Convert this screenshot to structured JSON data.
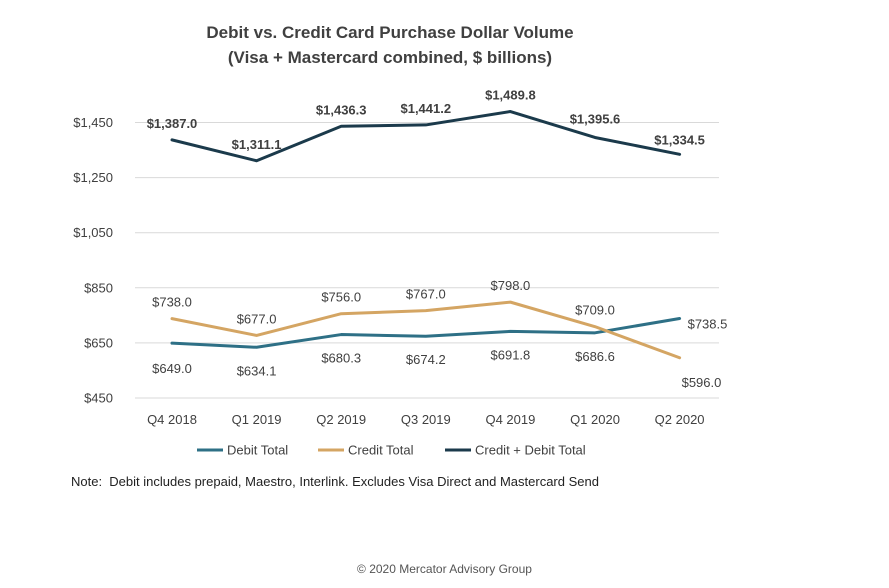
{
  "chart_data": {
    "type": "line",
    "title": "Debit vs. Credit Card Purchase Dollar Volume",
    "subtitle": "(Visa + Mastercard combined,  $ billions)",
    "categories": [
      "Q4 2018",
      "Q1 2019",
      "Q2 2019",
      "Q3 2019",
      "Q4 2019",
      "Q1 2020",
      "Q2 2020"
    ],
    "y_ticks": [
      "$450",
      "$650",
      "$850",
      "$1,050",
      "$1,250",
      "$1,450"
    ],
    "ylim": [
      450,
      1650
    ],
    "grid": true,
    "legend_position": "bottom",
    "series": [
      {
        "name": "Debit Total",
        "color": "#2e7086",
        "values": [
          649.0,
          634.1,
          680.3,
          674.2,
          691.8,
          686.6,
          738.5
        ],
        "labels": [
          "$649.0",
          "$634.1",
          "$680.3",
          "$674.2",
          "$691.8",
          "$686.6",
          "$738.5"
        ],
        "bold": false
      },
      {
        "name": "Credit Total",
        "color": "#d4a563",
        "values": [
          738.0,
          677.0,
          756.0,
          767.0,
          798.0,
          709.0,
          596.0
        ],
        "labels": [
          "$738.0",
          "$677.0",
          "$756.0",
          "$767.0",
          "$798.0",
          "$709.0",
          "$596.0"
        ],
        "bold": false
      },
      {
        "name": "Credit + Debit Total",
        "color": "#1b3a4b",
        "values": [
          1387.0,
          1311.1,
          1436.3,
          1441.2,
          1489.8,
          1395.6,
          1334.5
        ],
        "labels": [
          "$1,387.0",
          "$1,311.1",
          "$1,436.3",
          "$1,441.2",
          "$1,489.8",
          "$1,395.6",
          "$1,334.5"
        ],
        "bold": true
      }
    ]
  },
  "note": "Note:  Debit includes prepaid, Maestro, Interlink. Excludes Visa Direct and Mastercard Send",
  "copyright": "© 2020 Mercator Advisory Group"
}
